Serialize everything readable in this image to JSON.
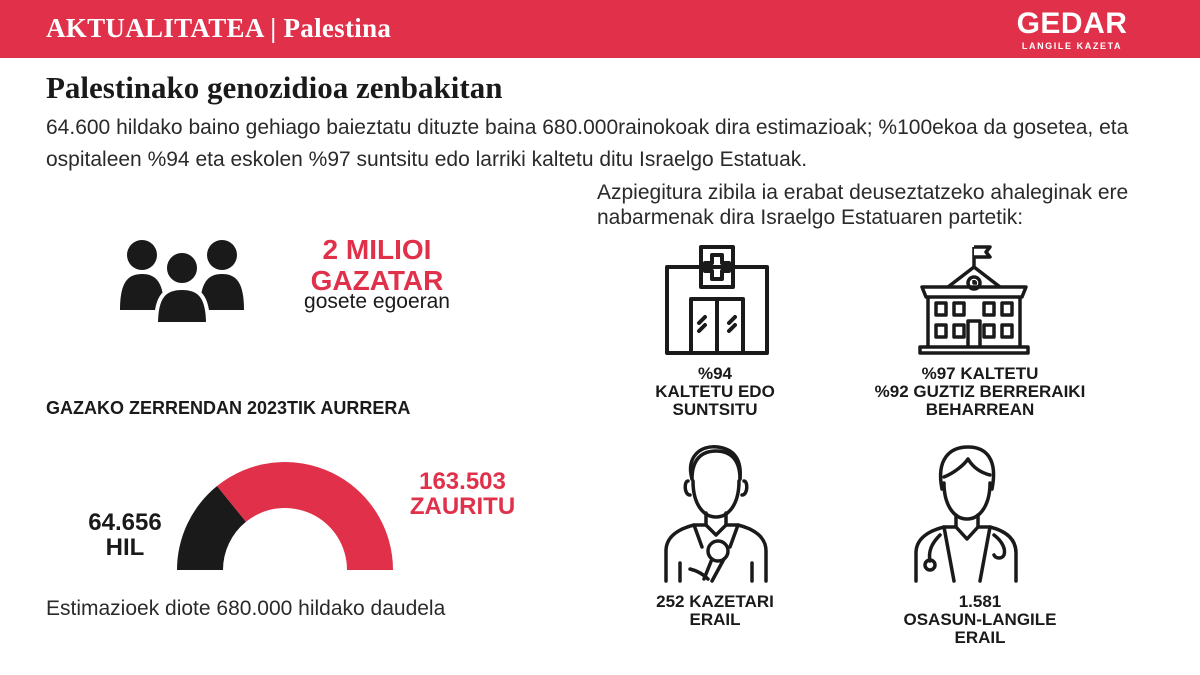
{
  "header": {
    "section_label": "AKTUALITATEA | Palestina",
    "brand_name": "GEDAR",
    "brand_tagline": "LANGILE KAZETA",
    "colors": {
      "accent": "#e0304a",
      "dark": "#1a1a1a"
    }
  },
  "headline": "Palestinako genozidioa zenbakitan",
  "intro": "64.600 hildako baino gehiago baieztatu dituzte baina 680.000rainokoak dira estimazioak; %100ekoa da gosetea, eta ospitaleen %94 eta eskolen %97 suntsitu edo larriki kaltetu ditu Israelgo Estatuak.",
  "population": {
    "icon": "people-group-icon",
    "number_lines": [
      "2 MILIOI",
      "GAZATAR"
    ],
    "description": "gosete egoeran"
  },
  "casualties": {
    "heading": "GAZAKO ZERRENDAN 2023TIK AURRERA",
    "dead": {
      "value": 64656,
      "label_lines": [
        "64.656",
        "HIL"
      ]
    },
    "wounded": {
      "value": 163503,
      "label_lines": [
        "163.503",
        "ZAURITU"
      ]
    },
    "estimate": "Estimazioek diote 680.000 hildako daudela"
  },
  "infrastructure": {
    "intro": "Azpiegitura zibila ia erabat deuseztatzeko ahaleginak ere nabarmenak dira Israelgo Estatuaren partetik:",
    "items": [
      {
        "icon": "hospital-icon",
        "caption_lines": [
          "%94",
          "KALTETU EDO",
          "SUNTSITU"
        ]
      },
      {
        "icon": "school-icon",
        "caption_lines": [
          "%97 KALTETU",
          "%92 GUZTIZ BERRERAIKI",
          "BEHARREAN"
        ]
      },
      {
        "icon": "journalist-icon",
        "caption_lines": [
          "252 KAZETARI",
          "ERAIL"
        ]
      },
      {
        "icon": "health-worker-icon",
        "caption_lines": [
          "1.581",
          "OSASUN-LANGILE",
          "ERAIL"
        ]
      }
    ]
  }
}
